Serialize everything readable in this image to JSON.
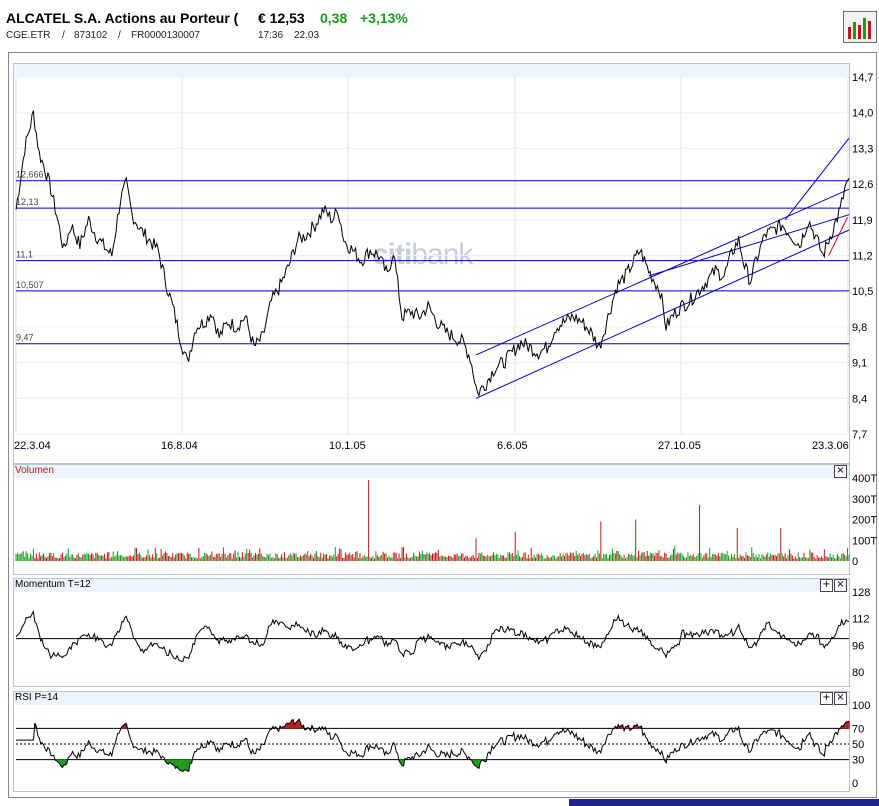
{
  "header": {
    "title": "ALCATEL S.A. Actions au Porteur (",
    "price": "€ 12,53",
    "change": "0,38",
    "change_pct": "+3,13%",
    "symbol": "CGE.ETR",
    "wkn": "873102",
    "isin": "FR0000130007",
    "time": "17:36",
    "date": "22.03",
    "sep1": "/",
    "sep2": "/"
  },
  "watermark": {
    "part1": "citi",
    "part2": "bank"
  },
  "colors": {
    "up": "#1b9a1b",
    "down": "#c01818",
    "trend": "#0000cc",
    "panel_bg": "#eef4fb"
  },
  "chart_data": [
    {
      "type": "line",
      "name": "price",
      "x_labels": [
        "22.3.04",
        "16.8.04",
        "10.1.05",
        "6.6.05",
        "27.10.05",
        "23.3.06"
      ],
      "ylim": [
        7.7,
        14.7
      ],
      "y_ticks": [
        "14,7",
        "14,0",
        "13,3",
        "12,6",
        "11,9",
        "11,2",
        "10,5",
        "9,8",
        "9,1",
        "8,4",
        "7,7"
      ],
      "levels": [
        {
          "value": 12.666,
          "label": "12,666"
        },
        {
          "value": 12.13,
          "label": "12,13"
        },
        {
          "value": 11.1,
          "label": "11,1"
        },
        {
          "value": 10.507,
          "label": "10,507"
        },
        {
          "value": 9.47,
          "label": "9,47"
        }
      ],
      "series_points": [
        [
          0,
          12.1
        ],
        [
          6,
          13.3
        ],
        [
          12,
          14.0
        ],
        [
          16,
          13.2
        ],
        [
          20,
          12.9
        ],
        [
          24,
          12.5
        ],
        [
          28,
          12.0
        ],
        [
          33,
          11.3
        ],
        [
          38,
          11.8
        ],
        [
          44,
          11.4
        ],
        [
          50,
          11.9
        ],
        [
          55,
          11.6
        ],
        [
          60,
          11.4
        ],
        [
          66,
          11.2
        ],
        [
          72,
          12.3
        ],
        [
          76,
          12.6
        ],
        [
          80,
          12.0
        ],
        [
          86,
          11.7
        ],
        [
          92,
          11.5
        ],
        [
          98,
          11.3
        ],
        [
          103,
          10.7
        ],
        [
          108,
          10.2
        ],
        [
          113,
          9.6
        ],
        [
          118,
          9.1
        ],
        [
          124,
          9.8
        ],
        [
          130,
          9.9
        ],
        [
          135,
          10.1
        ],
        [
          140,
          9.6
        ],
        [
          146,
          9.9
        ],
        [
          152,
          9.8
        ],
        [
          158,
          10.0
        ],
        [
          164,
          9.4
        ],
        [
          170,
          9.6
        ],
        [
          176,
          10.3
        ],
        [
          182,
          10.6
        ],
        [
          188,
          11.0
        ],
        [
          194,
          11.5
        ],
        [
          200,
          11.6
        ],
        [
          206,
          11.8
        ],
        [
          212,
          12.1
        ],
        [
          218,
          11.9
        ],
        [
          222,
          12.1
        ],
        [
          226,
          11.5
        ],
        [
          232,
          11.3
        ],
        [
          238,
          11.1
        ],
        [
          244,
          11.3
        ],
        [
          250,
          11.2
        ],
        [
          256,
          10.8
        ],
        [
          260,
          11.3
        ],
        [
          266,
          10.0
        ],
        [
          272,
          10.1
        ],
        [
          278,
          10.0
        ],
        [
          284,
          10.2
        ],
        [
          290,
          9.9
        ],
        [
          296,
          9.7
        ],
        [
          302,
          9.6
        ],
        [
          308,
          9.5
        ],
        [
          313,
          9.2
        ],
        [
          318,
          8.5
        ],
        [
          324,
          8.7
        ],
        [
          330,
          9.0
        ],
        [
          336,
          9.1
        ],
        [
          342,
          9.3
        ],
        [
          348,
          9.5
        ],
        [
          354,
          9.4
        ],
        [
          360,
          9.3
        ],
        [
          366,
          9.4
        ],
        [
          372,
          9.8
        ],
        [
          378,
          9.9
        ],
        [
          384,
          10.0
        ],
        [
          390,
          9.9
        ],
        [
          396,
          9.7
        ],
        [
          402,
          9.4
        ],
        [
          408,
          10.0
        ],
        [
          414,
          10.6
        ],
        [
          420,
          10.8
        ],
        [
          426,
          11.1
        ],
        [
          430,
          11.3
        ],
        [
          436,
          10.9
        ],
        [
          440,
          10.7
        ],
        [
          444,
          10.5
        ],
        [
          448,
          9.8
        ],
        [
          452,
          10.0
        ],
        [
          458,
          10.2
        ],
        [
          464,
          10.3
        ],
        [
          470,
          10.5
        ],
        [
          476,
          10.7
        ],
        [
          482,
          10.9
        ],
        [
          488,
          10.8
        ],
        [
          494,
          11.3
        ],
        [
          498,
          11.5
        ],
        [
          502,
          11.0
        ],
        [
          506,
          10.7
        ],
        [
          510,
          11.1
        ],
        [
          516,
          11.6
        ],
        [
          522,
          11.7
        ],
        [
          528,
          11.8
        ],
        [
          534,
          11.6
        ],
        [
          540,
          11.4
        ],
        [
          546,
          11.9
        ],
        [
          552,
          11.5
        ],
        [
          556,
          11.2
        ],
        [
          560,
          11.5
        ],
        [
          564,
          11.8
        ],
        [
          568,
          12.1
        ],
        [
          572,
          12.6
        ]
      ],
      "trendlines": [
        {
          "from": [
            317,
            8.4
          ],
          "to": [
            574,
            11.7
          ]
        },
        {
          "from": [
            317,
            9.25
          ],
          "to": [
            574,
            12.5
          ]
        },
        {
          "from": [
            436,
            10.8
          ],
          "to": [
            574,
            12.0
          ]
        },
        {
          "from": [
            530,
            11.9
          ],
          "to": [
            574,
            13.5
          ]
        }
      ],
      "red_trendline": {
        "from": [
          560,
          11.2
        ],
        "to": [
          573,
          11.95
        ]
      }
    },
    {
      "type": "bar",
      "name": "volume",
      "title": "Volumen",
      "ylim": [
        0,
        400
      ],
      "y_ticks": [
        "400T",
        "300T",
        "200T",
        "100T",
        "0"
      ],
      "spikes": [
        [
          243,
          390
        ],
        [
          317,
          110
        ],
        [
          344,
          140
        ],
        [
          403,
          190
        ],
        [
          427,
          200
        ],
        [
          471,
          270
        ],
        [
          497,
          160
        ],
        [
          527,
          160
        ]
      ]
    },
    {
      "type": "line",
      "name": "momentum",
      "title": "Momentum  T=12",
      "ylim": [
        80,
        128
      ],
      "y_ticks": [
        "128",
        "112",
        "96",
        "80"
      ],
      "reference": 100
    },
    {
      "type": "line",
      "name": "rsi",
      "title": "RSI  P=14",
      "ylim": [
        0,
        100
      ],
      "y_ticks": [
        "100",
        "70",
        "50",
        "30",
        "0"
      ],
      "bands": [
        70,
        50,
        30
      ]
    }
  ],
  "buttons": {
    "close": "×",
    "expand": "+"
  }
}
